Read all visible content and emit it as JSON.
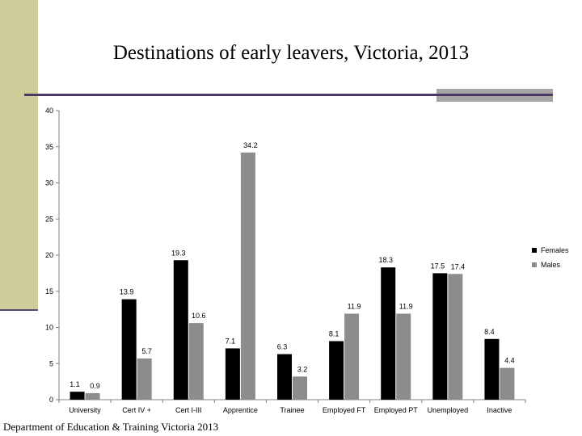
{
  "title": "Destinations of early leavers, Victoria, 2013",
  "footer": "Department of Education & Training Victoria 2013",
  "chart_data": {
    "type": "bar",
    "title": "Destinations of early leavers, Victoria, 2013",
    "categories": [
      "University",
      "Cert IV +",
      "Cert I-III",
      "Apprentice",
      "Trainee",
      "Employed FT",
      "Employed PT",
      "Unemployed",
      "Inactive"
    ],
    "series": [
      {
        "name": "Females",
        "color": "#000000",
        "values": [
          1.1,
          13.9,
          19.3,
          7.1,
          6.3,
          8.1,
          18.3,
          17.5,
          8.4
        ]
      },
      {
        "name": "Males",
        "color": "#8c8c8c",
        "values": [
          0.9,
          5.7,
          10.6,
          34.2,
          3.2,
          11.9,
          11.9,
          17.4,
          4.4
        ]
      }
    ],
    "ylim": [
      0,
      40
    ],
    "yticks": [
      0,
      5,
      10,
      15,
      20,
      25,
      30,
      35,
      40
    ],
    "xlabel": "",
    "ylabel": "",
    "grid": false,
    "legend_position": "right"
  }
}
